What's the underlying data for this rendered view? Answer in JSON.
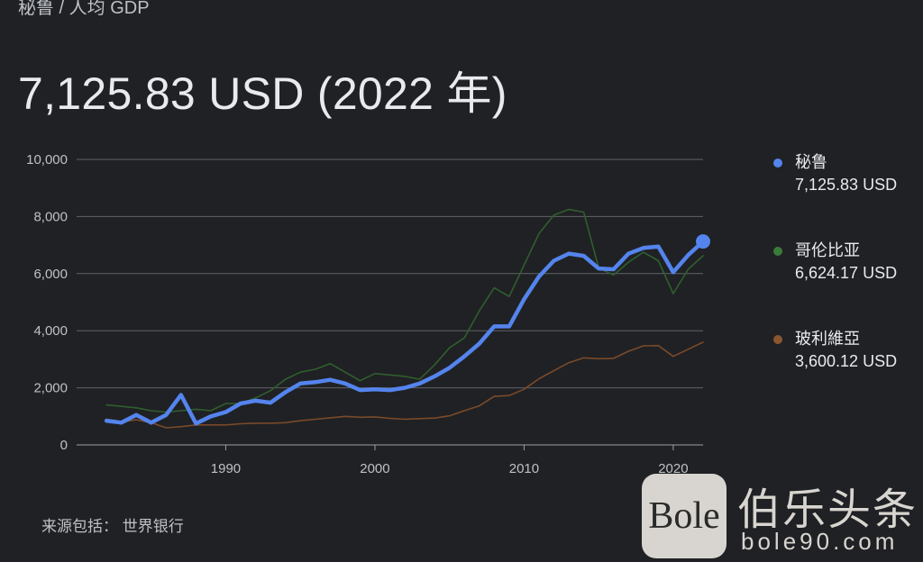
{
  "breadcrumb": "秘鲁 / 人均 GDP",
  "headline": "7,125.83 USD (2022 年)",
  "source_text": "来源包括： 世界银行",
  "watermark": {
    "box_text": "Bole",
    "cn_text": "伯乐头条",
    "url_text": "bole90.com"
  },
  "colors": {
    "background": "#202124",
    "peru": "#5484ed",
    "colombia": "#2f5f2f",
    "bolivia": "#7a4a2a",
    "grid": "#5f6368",
    "text": "#e8eaed"
  },
  "chart_data": {
    "type": "line",
    "title": "",
    "xlabel": "",
    "ylabel": "",
    "ylim": [
      0,
      10000
    ],
    "xlim": [
      1982,
      2022
    ],
    "yticks": [
      "0",
      "2,000",
      "4,000",
      "6,000",
      "8,000",
      "10,000"
    ],
    "xticks": [
      "1990",
      "2000",
      "2010",
      "2020"
    ],
    "grid": true,
    "legend_position": "right",
    "x": [
      1982,
      1983,
      1984,
      1985,
      1986,
      1987,
      1988,
      1989,
      1990,
      1991,
      1992,
      1993,
      1994,
      1995,
      1996,
      1997,
      1998,
      1999,
      2000,
      2001,
      2002,
      2003,
      2004,
      2005,
      2006,
      2007,
      2008,
      2009,
      2010,
      2011,
      2012,
      2013,
      2014,
      2015,
      2016,
      2017,
      2018,
      2019,
      2020,
      2021,
      2022
    ],
    "series": [
      {
        "name": "秘鲁",
        "value_label": "7,125.83 USD",
        "color": "#5484ed",
        "values": [
          850,
          780,
          1050,
          780,
          1050,
          1750,
          750,
          1000,
          1150,
          1450,
          1550,
          1480,
          1850,
          2150,
          2200,
          2280,
          2150,
          1920,
          1950,
          1920,
          2000,
          2150,
          2400,
          2700,
          3100,
          3550,
          4150,
          4150,
          5100,
          5900,
          6450,
          6700,
          6620,
          6180,
          6150,
          6700,
          6900,
          6950,
          6050,
          6650,
          7125.83
        ]
      },
      {
        "name": "哥伦比亚",
        "value_label": "6,624.17 USD",
        "color": "#2f5f2f",
        "values": [
          1400,
          1350,
          1300,
          1200,
          1150,
          1200,
          1250,
          1200,
          1450,
          1450,
          1650,
          1900,
          2300,
          2550,
          2650,
          2850,
          2550,
          2250,
          2500,
          2450,
          2400,
          2300,
          2800,
          3400,
          3750,
          4700,
          5500,
          5200,
          6300,
          7400,
          8050,
          8250,
          8150,
          6200,
          5950,
          6400,
          6750,
          6450,
          5300,
          6150,
          6624.17
        ]
      },
      {
        "name": "玻利維亞",
        "value_label": "3,600.12 USD",
        "color": "#7a4a2a",
        "values": [
          900,
          800,
          880,
          780,
          600,
          640,
          700,
          700,
          700,
          740,
          760,
          760,
          780,
          850,
          900,
          950,
          1000,
          970,
          980,
          930,
          900,
          920,
          940,
          1020,
          1200,
          1370,
          1700,
          1730,
          1950,
          2320,
          2600,
          2880,
          3050,
          3020,
          3030,
          3280,
          3470,
          3480,
          3100,
          3350,
          3600.12
        ]
      }
    ]
  }
}
